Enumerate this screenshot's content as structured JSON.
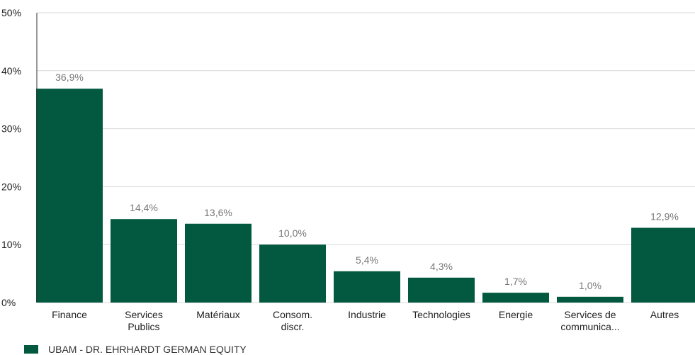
{
  "chart_data": {
    "type": "bar",
    "categories": [
      "Finance",
      "Services Publics",
      "Matériaux",
      "Consom. discr.",
      "Industrie",
      "Technologies",
      "Energie",
      "Services de communica...",
      "Autres"
    ],
    "category_lines": [
      [
        "Finance"
      ],
      [
        "Services",
        "Publics"
      ],
      [
        "Matériaux"
      ],
      [
        "Consom.",
        "discr."
      ],
      [
        "Industrie"
      ],
      [
        "Technologies"
      ],
      [
        "Energie"
      ],
      [
        "Services de",
        "communica..."
      ],
      [
        "Autres"
      ]
    ],
    "series": [
      {
        "name": "UBAM - DR. EHRHARDT GERMAN EQUITY",
        "values": [
          36.9,
          14.4,
          13.6,
          10.0,
          5.4,
          4.3,
          1.7,
          1.0,
          12.9
        ],
        "value_labels": [
          "36,9%",
          "14,4%",
          "13,6%",
          "10,0%",
          "5,4%",
          "4,3%",
          "1,7%",
          "1,0%",
          "12,9%"
        ]
      }
    ],
    "ylim": [
      0,
      50
    ],
    "yticks": [
      0,
      10,
      20,
      30,
      40,
      50
    ],
    "ytick_labels": [
      "0%",
      "10%",
      "20%",
      "30%",
      "40%",
      "50%"
    ],
    "grid": true,
    "legend_position": "bottom-left",
    "colors": {
      "bar": "#025940",
      "grid": "#d9d9d9",
      "axis": "#333333"
    }
  }
}
